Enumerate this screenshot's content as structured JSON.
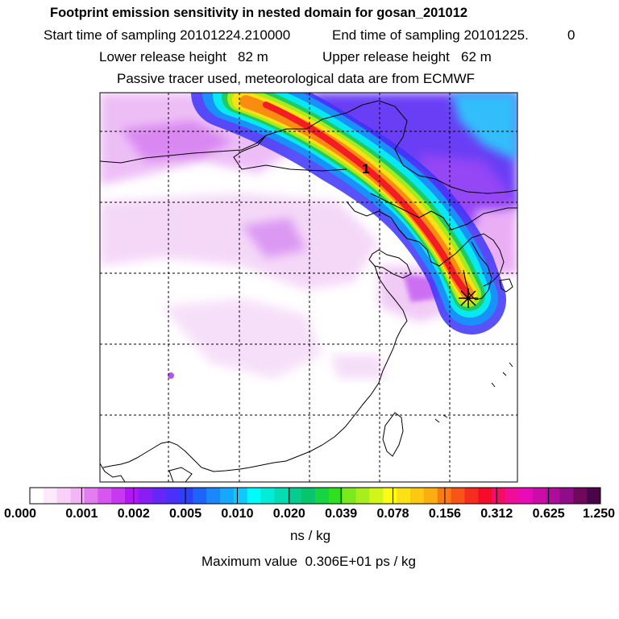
{
  "header": {
    "title": "Footprint emission sensitivity in nested domain for gosan_201012",
    "start_label": "Start time of sampling 20101224.210000",
    "end_label": "End time of sampling 20101225.",
    "end_value": "0",
    "lower_label": "Lower release height   82 m",
    "upper_label": "Upper release height   62 m",
    "passive_label": "Passive tracer used, meteorological data are from ECMWF"
  },
  "map": {
    "plume_label": "1",
    "receptor_marker": "star"
  },
  "colorbar": {
    "labels": [
      "0.000",
      "0.001",
      "0.002",
      "0.005",
      "0.010",
      "0.020",
      "0.039",
      "0.078",
      "0.156",
      "0.312",
      "0.625",
      "1.250"
    ],
    "colors": [
      "#ffffff",
      "#fde8fc",
      "#f8d0f8",
      "#f2b6f6",
      "#e37cf0",
      "#d656f0",
      "#c838f2",
      "#b216f4",
      "#8a1cf5",
      "#6626f6",
      "#4a30f8",
      "#2c40fa",
      "#1f64fa",
      "#1c86fb",
      "#16a8fb",
      "#11c8fc",
      "#00fbfb",
      "#03ecd8",
      "#05dcb4",
      "#07cc90",
      "#08c46c",
      "#16d444",
      "#30e020",
      "#7ce81e",
      "#a8ee1c",
      "#d2f51a",
      "#fcfc18",
      "#fce214",
      "#fcc812",
      "#fcae10",
      "#fa7a14",
      "#f85418",
      "#f62c1e",
      "#f40c2a",
      "#f40c66",
      "#f20c9a",
      "#e80cb8",
      "#cc0ca8",
      "#ae0c9a",
      "#900c88",
      "#72085e",
      "#4a0448"
    ],
    "units": "ns / kg"
  },
  "footer": {
    "max_value": "Maximum value  0.306E+01 ps / kg"
  }
}
